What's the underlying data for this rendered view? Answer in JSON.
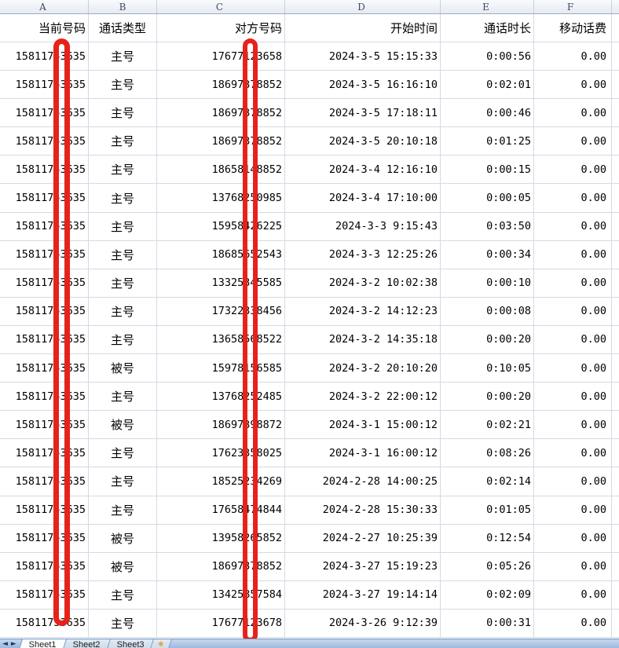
{
  "spreadsheet": {
    "column_letters": [
      "A",
      "B",
      "C",
      "D",
      "E",
      "F"
    ],
    "headers": {
      "current_number": "当前号码",
      "call_type": "通话类型",
      "peer_number": "对方号码",
      "start_time": "开始时间",
      "duration": "通话时长",
      "mobile_fee": "移动话费"
    },
    "rows": [
      {
        "current_number": "15811753635",
        "call_type": "主号",
        "peer_number": "17677123658",
        "start_time": "2024-3-5 15:15:33",
        "duration": "0:00:56",
        "mobile_fee": "0.00"
      },
      {
        "current_number": "15811753635",
        "call_type": "主号",
        "peer_number": "18697378852",
        "start_time": "2024-3-5 16:16:10",
        "duration": "0:02:01",
        "mobile_fee": "0.00"
      },
      {
        "current_number": "15811753635",
        "call_type": "主号",
        "peer_number": "18697378852",
        "start_time": "2024-3-5 17:18:11",
        "duration": "0:00:46",
        "mobile_fee": "0.00"
      },
      {
        "current_number": "15811753635",
        "call_type": "主号",
        "peer_number": "18697378852",
        "start_time": "2024-3-5 20:10:18",
        "duration": "0:01:25",
        "mobile_fee": "0.00"
      },
      {
        "current_number": "15811753635",
        "call_type": "主号",
        "peer_number": "18658148852",
        "start_time": "2024-3-4 12:16:10",
        "duration": "0:00:15",
        "mobile_fee": "0.00"
      },
      {
        "current_number": "15811753635",
        "call_type": "主号",
        "peer_number": "13768250985",
        "start_time": "2024-3-4 17:10:00",
        "duration": "0:00:05",
        "mobile_fee": "0.00"
      },
      {
        "current_number": "15811753635",
        "call_type": "主号",
        "peer_number": "15958426225",
        "start_time": "2024-3-3 9:15:43",
        "duration": "0:03:50",
        "mobile_fee": "0.00"
      },
      {
        "current_number": "15811753635",
        "call_type": "主号",
        "peer_number": "18685652543",
        "start_time": "2024-3-3 12:25:26",
        "duration": "0:00:34",
        "mobile_fee": "0.00"
      },
      {
        "current_number": "15811753635",
        "call_type": "主号",
        "peer_number": "13325345585",
        "start_time": "2024-3-2 10:02:38",
        "duration": "0:00:10",
        "mobile_fee": "0.00"
      },
      {
        "current_number": "15811753635",
        "call_type": "主号",
        "peer_number": "17322338456",
        "start_time": "2024-3-2 14:12:23",
        "duration": "0:00:08",
        "mobile_fee": "0.00"
      },
      {
        "current_number": "15811753635",
        "call_type": "主号",
        "peer_number": "13658568522",
        "start_time": "2024-3-2 14:35:18",
        "duration": "0:00:20",
        "mobile_fee": "0.00"
      },
      {
        "current_number": "15811753635",
        "call_type": "被号",
        "peer_number": "15978156585",
        "start_time": "2024-3-2 20:10:20",
        "duration": "0:10:05",
        "mobile_fee": "0.00"
      },
      {
        "current_number": "15811753635",
        "call_type": "主号",
        "peer_number": "13768252485",
        "start_time": "2024-3-2 22:00:12",
        "duration": "0:00:20",
        "mobile_fee": "0.00"
      },
      {
        "current_number": "15811753635",
        "call_type": "被号",
        "peer_number": "18697398872",
        "start_time": "2024-3-1 15:00:12",
        "duration": "0:02:21",
        "mobile_fee": "0.00"
      },
      {
        "current_number": "15811753635",
        "call_type": "主号",
        "peer_number": "17623358025",
        "start_time": "2024-3-1 16:00:12",
        "duration": "0:08:26",
        "mobile_fee": "0.00"
      },
      {
        "current_number": "15811753635",
        "call_type": "主号",
        "peer_number": "18525234269",
        "start_time": "2024-2-28 14:00:25",
        "duration": "0:02:14",
        "mobile_fee": "0.00"
      },
      {
        "current_number": "15811753635",
        "call_type": "主号",
        "peer_number": "17658474844",
        "start_time": "2024-2-28 15:30:33",
        "duration": "0:01:05",
        "mobile_fee": "0.00"
      },
      {
        "current_number": "15811753635",
        "call_type": "被号",
        "peer_number": "13958265852",
        "start_time": "2024-2-27 10:25:39",
        "duration": "0:12:54",
        "mobile_fee": "0.00"
      },
      {
        "current_number": "15811753635",
        "call_type": "被号",
        "peer_number": "18697378852",
        "start_time": "2024-3-27 15:19:23",
        "duration": "0:05:26",
        "mobile_fee": "0.00"
      },
      {
        "current_number": "15811753635",
        "call_type": "主号",
        "peer_number": "13425857584",
        "start_time": "2024-3-27 19:14:14",
        "duration": "0:02:09",
        "mobile_fee": "0.00"
      },
      {
        "current_number": "15811753635",
        "call_type": "主号",
        "peer_number": "17677123678",
        "start_time": "2024-3-26 9:12:39",
        "duration": "0:00:31",
        "mobile_fee": "0.00"
      }
    ]
  },
  "annotations": {
    "redaction_color": "#e7221b",
    "description": "Two tall red rounded-rectangle outlines drawn over the middle digits of the phone numbers in column A and column C"
  },
  "tab_bar": {
    "nav_first": "◄",
    "nav_last": "►",
    "tabs": [
      "Sheet1",
      "Sheet2",
      "Sheet3"
    ],
    "active_tab": "Sheet1",
    "insert_icon": "✱"
  }
}
